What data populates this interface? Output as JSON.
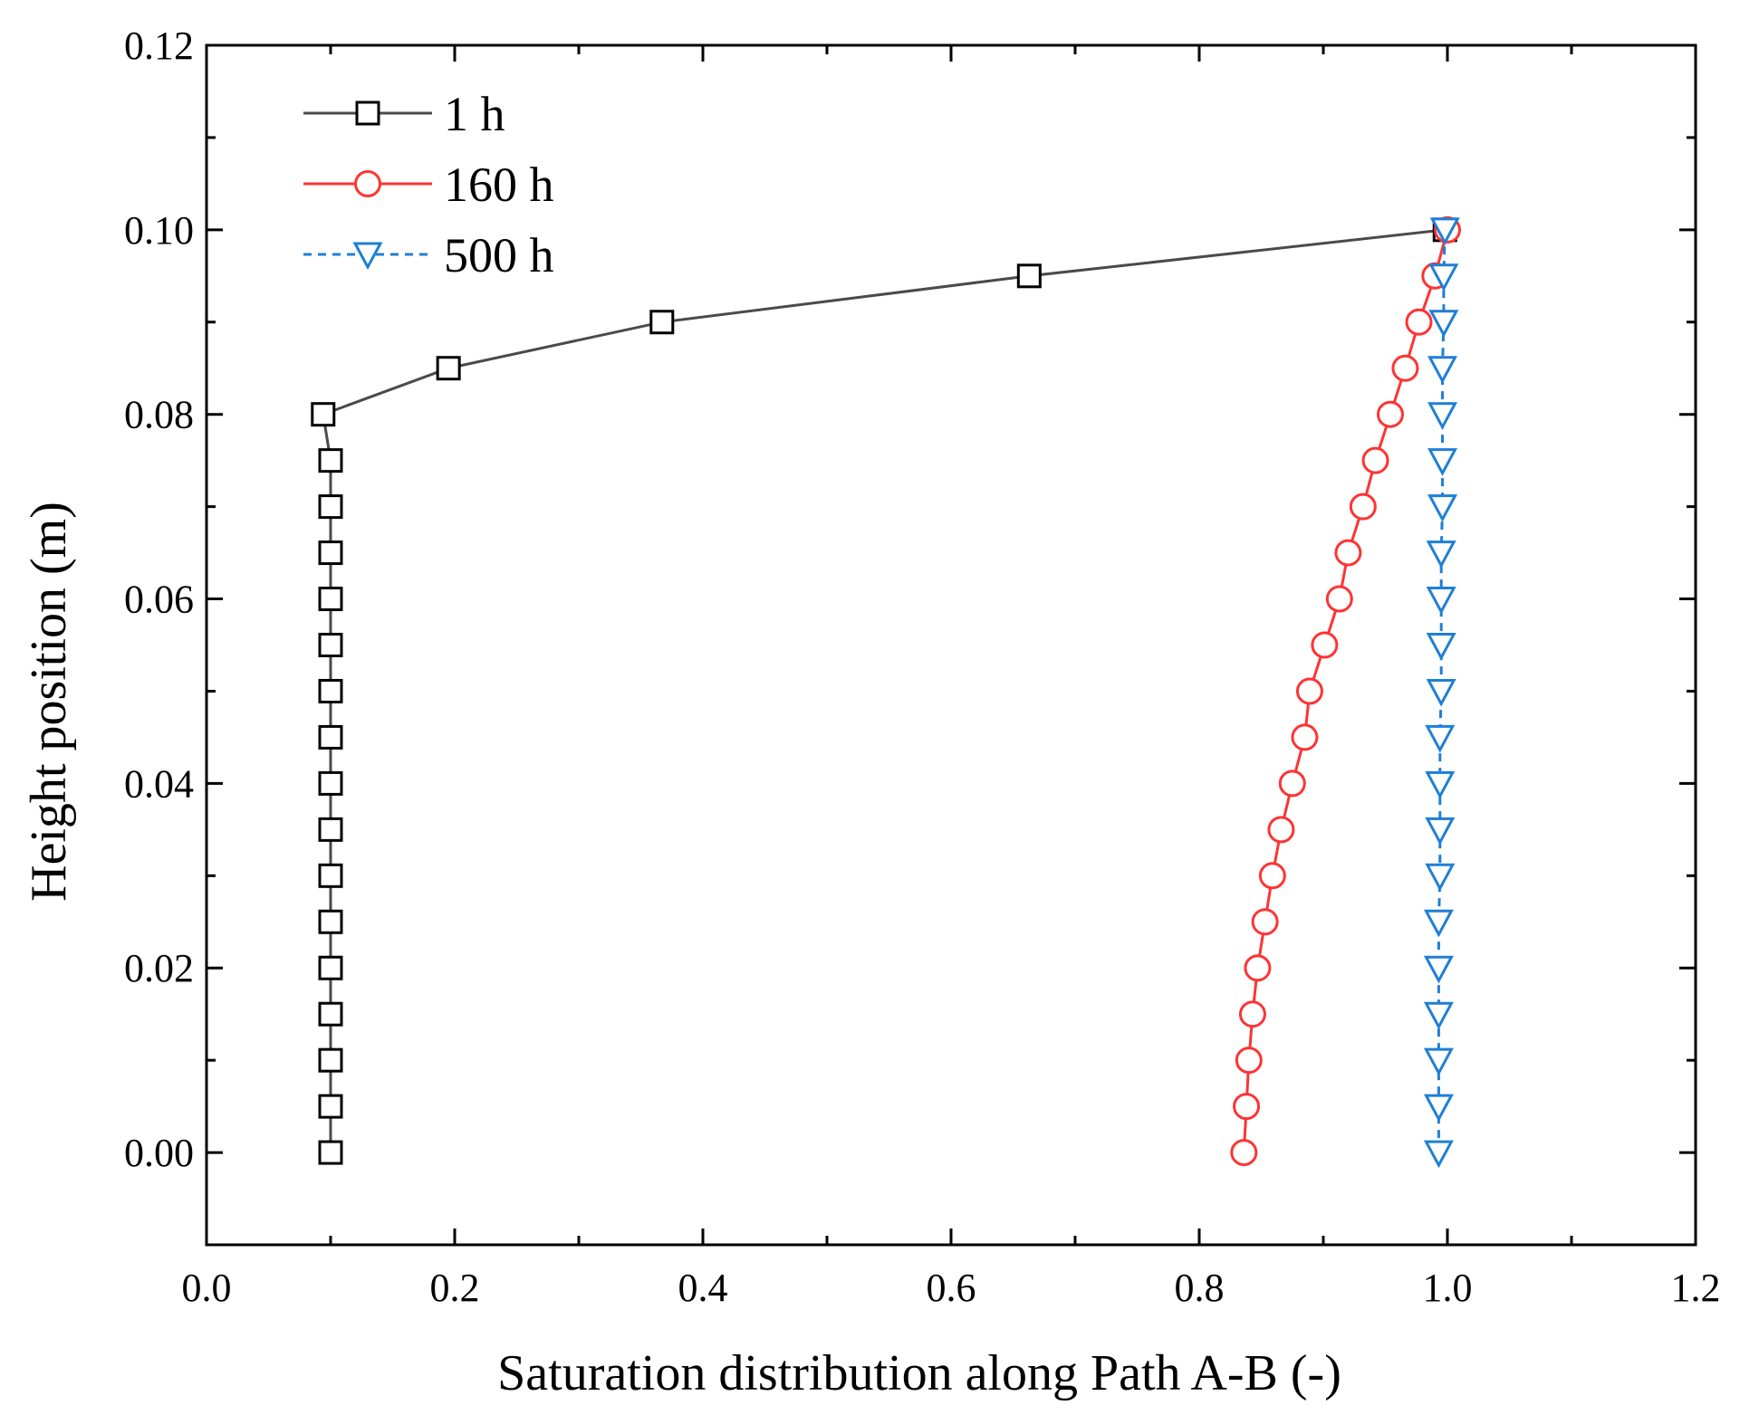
{
  "chart_data": {
    "type": "line",
    "xlabel": "Saturation distribution along Path A-B (-)",
    "ylabel": "Height position (m)",
    "xlim": [
      0.0,
      1.2
    ],
    "ylim": [
      -0.01,
      0.12
    ],
    "x_ticks": [
      "0.0",
      "0.2",
      "0.4",
      "0.6",
      "0.8",
      "1.0",
      "1.2"
    ],
    "y_ticks": [
      "0.00",
      "0.02",
      "0.04",
      "0.06",
      "0.08",
      "0.10",
      "0.12"
    ],
    "grid": false,
    "legend_position": "top-left",
    "series": [
      {
        "name": "1 h",
        "color": "#4a4a4a",
        "marker": "square",
        "line_style": "solid",
        "points": [
          [
            0.1,
            0.0
          ],
          [
            0.1,
            0.005
          ],
          [
            0.1,
            0.01
          ],
          [
            0.1,
            0.015
          ],
          [
            0.1,
            0.02
          ],
          [
            0.1,
            0.025
          ],
          [
            0.1,
            0.03
          ],
          [
            0.1,
            0.035
          ],
          [
            0.1,
            0.04
          ],
          [
            0.1,
            0.045
          ],
          [
            0.1,
            0.05
          ],
          [
            0.1,
            0.055
          ],
          [
            0.1,
            0.06
          ],
          [
            0.1,
            0.065
          ],
          [
            0.1,
            0.07
          ],
          [
            0.1,
            0.075
          ],
          [
            0.094,
            0.08
          ],
          [
            0.195,
            0.085
          ],
          [
            0.367,
            0.09
          ],
          [
            0.663,
            0.095
          ],
          [
            0.998,
            0.1
          ]
        ]
      },
      {
        "name": "160 h",
        "color": "#ff3333",
        "marker": "circle",
        "line_style": "solid",
        "points": [
          [
            0.836,
            0.0
          ],
          [
            0.838,
            0.005
          ],
          [
            0.84,
            0.01
          ],
          [
            0.843,
            0.015
          ],
          [
            0.847,
            0.02
          ],
          [
            0.853,
            0.025
          ],
          [
            0.859,
            0.03
          ],
          [
            0.866,
            0.035
          ],
          [
            0.875,
            0.04
          ],
          [
            0.885,
            0.045
          ],
          [
            0.889,
            0.05
          ],
          [
            0.901,
            0.055
          ],
          [
            0.913,
            0.06
          ],
          [
            0.92,
            0.065
          ],
          [
            0.932,
            0.07
          ],
          [
            0.942,
            0.075
          ],
          [
            0.954,
            0.08
          ],
          [
            0.966,
            0.085
          ],
          [
            0.977,
            0.09
          ],
          [
            0.99,
            0.095
          ],
          [
            1.0,
            0.1
          ]
        ]
      },
      {
        "name": "500 h",
        "color": "#1f7fd6",
        "marker": "triangle-down",
        "line_style": "dash",
        "points": [
          [
            0.993,
            0.0
          ],
          [
            0.993,
            0.005
          ],
          [
            0.993,
            0.01
          ],
          [
            0.993,
            0.015
          ],
          [
            0.993,
            0.02
          ],
          [
            0.993,
            0.025
          ],
          [
            0.994,
            0.03
          ],
          [
            0.994,
            0.035
          ],
          [
            0.994,
            0.04
          ],
          [
            0.994,
            0.045
          ],
          [
            0.995,
            0.05
          ],
          [
            0.995,
            0.055
          ],
          [
            0.995,
            0.06
          ],
          [
            0.995,
            0.065
          ],
          [
            0.996,
            0.07
          ],
          [
            0.996,
            0.075
          ],
          [
            0.996,
            0.08
          ],
          [
            0.996,
            0.085
          ],
          [
            0.997,
            0.09
          ],
          [
            0.997,
            0.095
          ],
          [
            0.998,
            0.1
          ]
        ]
      }
    ]
  }
}
